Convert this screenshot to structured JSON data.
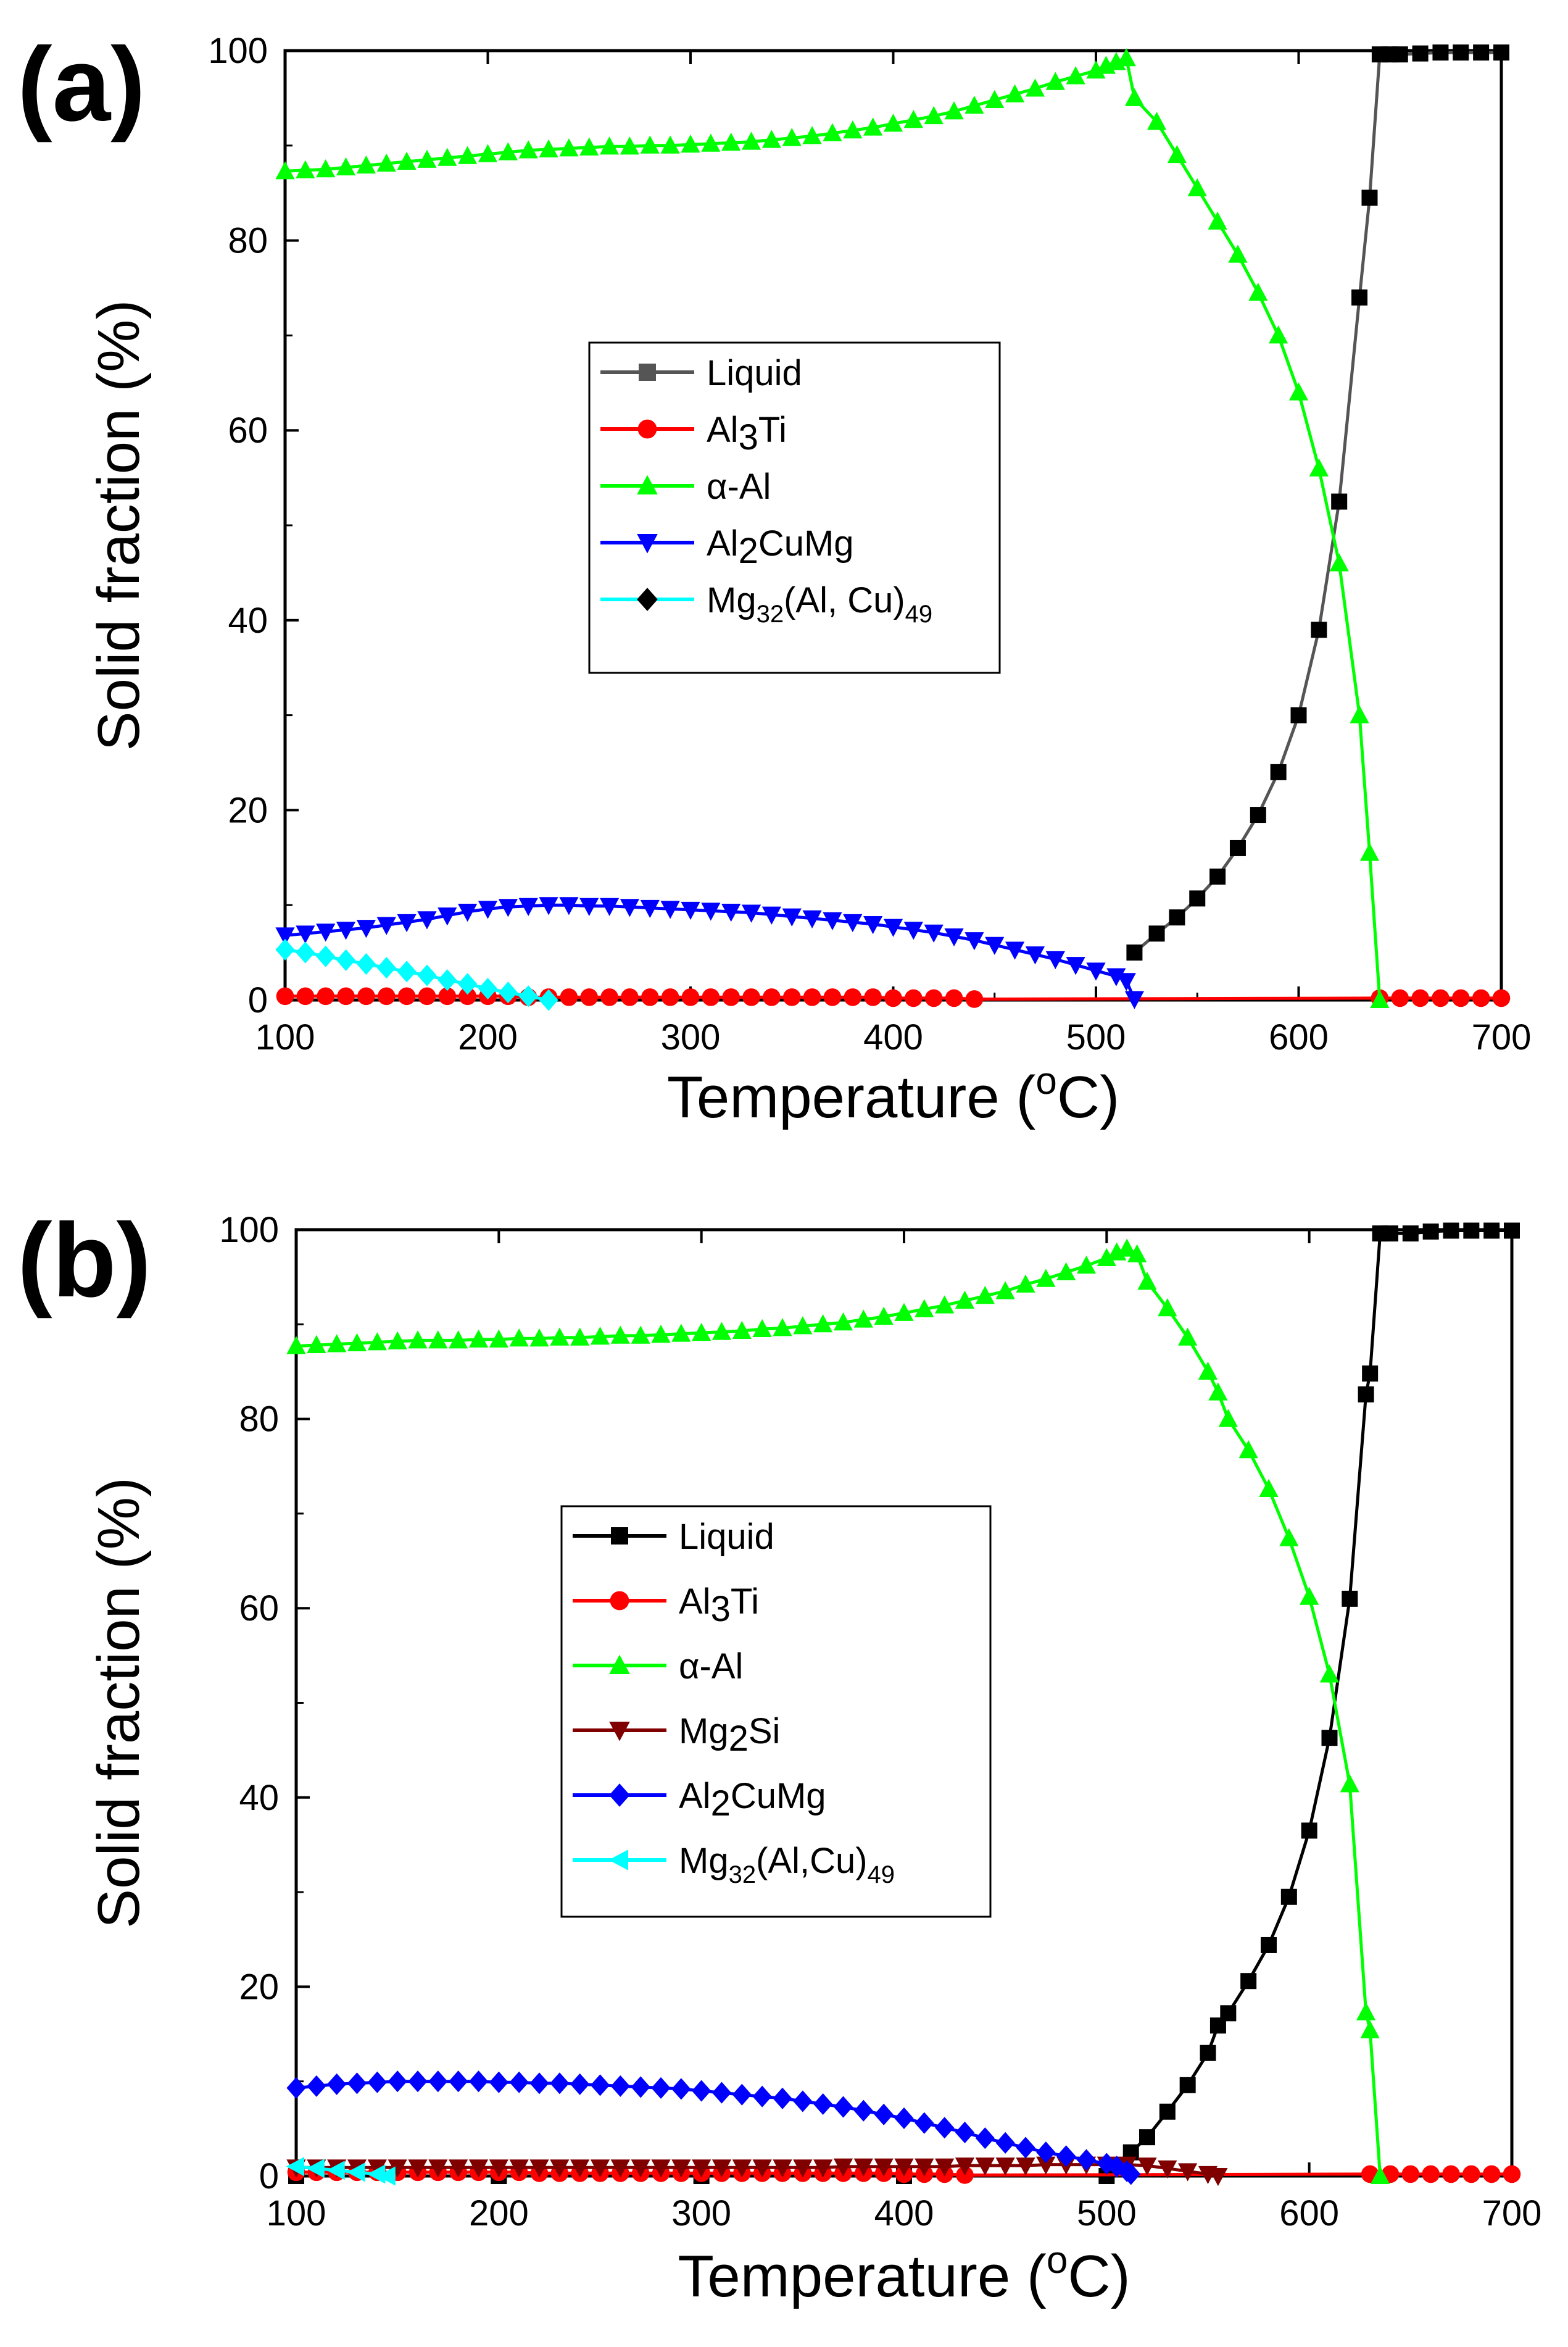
{
  "figure": {
    "colors": {
      "Liquid_a": "#555555",
      "Liquid_b": "#000000",
      "Al3Ti": "#ff0000",
      "alpha_Al": "#00ff00",
      "Al2CuMg_a": "#0000ff",
      "Mg2Si": "#800000",
      "Al2CuMg_b": "#0000ff",
      "Mg32": "#00ffff"
    }
  },
  "chart_data": [
    {
      "panel": "(a)",
      "type": "line",
      "xlabel": "Temperature (oC)",
      "xlabel_parts": {
        "main": "Temperature (",
        "sup": "o",
        "end": "C)"
      },
      "ylabel": "Solid fraction (%)",
      "xlim": [
        100,
        700
      ],
      "ylim": [
        0,
        100
      ],
      "xticks": [
        "100",
        "200",
        "300",
        "400",
        "500",
        "600",
        "700"
      ],
      "yticks": [
        "0",
        "20",
        "40",
        "60",
        "80",
        "100"
      ],
      "legend_position": "center",
      "legend": [
        {
          "text": "Liquid",
          "sub": "",
          "tail": "",
          "sub2": "",
          "marker": "square",
          "color": "#555555"
        },
        {
          "text": "Al",
          "sub": "3",
          "tail": "Ti",
          "sub2": "",
          "marker": "circle",
          "color": "#ff0000"
        },
        {
          "text": "α-Al",
          "sub": "",
          "tail": "",
          "sub2": "",
          "marker": "triangle-up",
          "color": "#00ff00"
        },
        {
          "text": "Al",
          "sub": "2",
          "tail": "CuMg",
          "sub2": "",
          "marker": "triangle-down",
          "color": "#0000ff"
        },
        {
          "text": "Mg",
          "sub": "32",
          "tail": "(Al, Cu)",
          "sub2": "49",
          "marker": "diamond",
          "color": "#00ffff",
          "marker_color": "#000000"
        }
      ],
      "series": [
        {
          "name": "Liquid",
          "color": "#555555",
          "marker": "square",
          "marker_color": "#000000",
          "x": [
            519,
            530,
            540,
            550,
            560,
            570,
            580,
            590,
            600,
            610,
            620,
            630,
            635,
            640,
            645,
            650,
            660,
            670,
            680,
            690,
            700
          ],
          "y": [
            5,
            7,
            8.7,
            10.7,
            13,
            16,
            19.5,
            24,
            30,
            39,
            52.5,
            74,
            84.5,
            99.6,
            99.6,
            99.6,
            99.7,
            99.8,
            99.8,
            99.8,
            99.8
          ]
        },
        {
          "name": "Al3Ti",
          "color": "#ff0000",
          "marker": "circle",
          "marker_color": "#ff0000",
          "x": [
            100,
            110,
            120,
            130,
            140,
            150,
            160,
            170,
            180,
            190,
            200,
            210,
            220,
            230,
            240,
            250,
            260,
            270,
            280,
            290,
            300,
            310,
            320,
            330,
            340,
            350,
            360,
            370,
            380,
            390,
            400,
            410,
            420,
            430,
            440,
            640,
            650,
            660,
            670,
            680,
            690,
            700
          ],
          "y": [
            0.4,
            0.4,
            0.4,
            0.4,
            0.4,
            0.4,
            0.4,
            0.4,
            0.4,
            0.4,
            0.4,
            0.4,
            0.3,
            0.3,
            0.3,
            0.3,
            0.3,
            0.3,
            0.3,
            0.3,
            0.3,
            0.3,
            0.3,
            0.3,
            0.3,
            0.3,
            0.3,
            0.3,
            0.3,
            0.3,
            0.2,
            0.2,
            0.2,
            0.2,
            0.1,
            0.2,
            0.2,
            0.2,
            0.2,
            0.2,
            0.2,
            0.2
          ]
        },
        {
          "name": "α-Al",
          "color": "#00ff00",
          "marker": "triangle-up",
          "marker_color": "#00ff00",
          "x": [
            100,
            110,
            120,
            130,
            140,
            150,
            160,
            170,
            180,
            190,
            200,
            210,
            220,
            230,
            240,
            250,
            260,
            270,
            280,
            290,
            300,
            310,
            320,
            330,
            340,
            350,
            360,
            370,
            380,
            390,
            400,
            410,
            420,
            430,
            440,
            450,
            460,
            470,
            480,
            490,
            500,
            505,
            510,
            515,
            519,
            530,
            540,
            550,
            560,
            570,
            580,
            590,
            600,
            610,
            620,
            630,
            635,
            640
          ],
          "y": [
            87.3,
            87.4,
            87.5,
            87.7,
            87.9,
            88.1,
            88.3,
            88.5,
            88.7,
            88.9,
            89.1,
            89.3,
            89.5,
            89.6,
            89.7,
            89.8,
            89.9,
            89.9,
            90.0,
            90.0,
            90.1,
            90.2,
            90.3,
            90.4,
            90.6,
            90.8,
            91.0,
            91.3,
            91.6,
            91.9,
            92.3,
            92.7,
            93.1,
            93.6,
            94.2,
            94.8,
            95.4,
            96.0,
            96.7,
            97.3,
            97.9,
            98.4,
            98.8,
            99.2,
            95,
            92.5,
            89,
            85.5,
            82,
            78.5,
            74.5,
            70,
            64,
            56,
            46,
            30,
            15.5,
            0
          ]
        },
        {
          "name": "Al2CuMg",
          "color": "#0000ff",
          "marker": "triangle-down",
          "marker_color": "#0000ff",
          "x": [
            100,
            110,
            120,
            130,
            140,
            150,
            160,
            170,
            180,
            190,
            200,
            210,
            220,
            230,
            240,
            250,
            260,
            270,
            280,
            290,
            300,
            310,
            320,
            330,
            340,
            350,
            360,
            370,
            380,
            390,
            400,
            410,
            420,
            430,
            440,
            450,
            460,
            470,
            480,
            490,
            500,
            510,
            515,
            519
          ],
          "y": [
            6.8,
            7.0,
            7.2,
            7.4,
            7.6,
            7.9,
            8.2,
            8.5,
            8.9,
            9.3,
            9.6,
            9.8,
            9.9,
            10.0,
            10.0,
            9.9,
            9.9,
            9.8,
            9.7,
            9.6,
            9.5,
            9.4,
            9.3,
            9.2,
            9.0,
            8.8,
            8.6,
            8.4,
            8.2,
            8.0,
            7.7,
            7.4,
            7.1,
            6.7,
            6.3,
            5.8,
            5.3,
            4.8,
            4.3,
            3.7,
            3.1,
            2.5,
            2.0,
            0.1
          ]
        },
        {
          "name": "Mg32(Al, Cu)49",
          "color": "#00ffff",
          "marker": "diamond",
          "marker_color": "#00ffff",
          "x": [
            100,
            110,
            120,
            130,
            140,
            150,
            160,
            170,
            180,
            190,
            200,
            210,
            220,
            230
          ],
          "y": [
            5.3,
            5.0,
            4.6,
            4.2,
            3.8,
            3.4,
            3.0,
            2.6,
            2.1,
            1.7,
            1.2,
            0.8,
            0.4,
            0.0
          ]
        }
      ]
    },
    {
      "panel": "(b)",
      "type": "line",
      "xlabel": "Temperature (oC)",
      "xlabel_parts": {
        "main": "Temperature (",
        "sup": "o",
        "end": "C)"
      },
      "ylabel": "Solid fraction (%)",
      "xlim": [
        100,
        700
      ],
      "ylim": [
        0,
        100
      ],
      "xticks": [
        "100",
        "200",
        "300",
        "400",
        "500",
        "600",
        "700"
      ],
      "yticks": [
        "0",
        "20",
        "40",
        "60",
        "80",
        "100"
      ],
      "legend_position": "center",
      "legend": [
        {
          "text": "Liquid",
          "sub": "",
          "tail": "",
          "sub2": "",
          "marker": "square",
          "color": "#000000"
        },
        {
          "text": "Al",
          "sub": "3",
          "tail": "Ti",
          "sub2": "",
          "marker": "circle",
          "color": "#ff0000"
        },
        {
          "text": "α-Al",
          "sub": "",
          "tail": "",
          "sub2": "",
          "marker": "triangle-up",
          "color": "#00ff00"
        },
        {
          "text": "Mg",
          "sub": "2",
          "tail": "Si",
          "sub2": "",
          "marker": "triangle-down",
          "color": "#800000"
        },
        {
          "text": "Al",
          "sub": "2",
          "tail": "CuMg",
          "sub2": "",
          "marker": "diamond",
          "color": "#0000ff"
        },
        {
          "text": "Mg",
          "sub": "32",
          "tail": "(Al,Cu)",
          "sub2": "49",
          "marker": "triangle-left",
          "color": "#00ffff"
        }
      ],
      "series": [
        {
          "name": "Liquid",
          "color": "#000000",
          "marker": "square",
          "marker_color": "#000000",
          "x": [
            100,
            200,
            300,
            400,
            500,
            512,
            520,
            530,
            540,
            550,
            555,
            560,
            570,
            580,
            590,
            600,
            610,
            620,
            628,
            630,
            635,
            640,
            650,
            660,
            670,
            680,
            690,
            700
          ],
          "y": [
            0,
            0,
            0,
            0,
            0,
            2.5,
            4.1,
            6.8,
            9.6,
            13,
            15.9,
            17.2,
            20.6,
            24.4,
            29.5,
            36.5,
            46.3,
            61,
            82.6,
            84.8,
            99.6,
            99.6,
            99.6,
            99.8,
            99.9,
            99.9,
            99.9,
            99.9
          ]
        },
        {
          "name": "Al3Ti",
          "color": "#ff0000",
          "marker": "circle",
          "marker_color": "#ff0000",
          "x": [
            100,
            110,
            120,
            130,
            140,
            150,
            160,
            170,
            180,
            190,
            200,
            210,
            220,
            230,
            240,
            250,
            260,
            270,
            280,
            290,
            300,
            310,
            320,
            330,
            340,
            350,
            360,
            370,
            380,
            390,
            400,
            410,
            420,
            430,
            630,
            640,
            650,
            660,
            670,
            680,
            690,
            700
          ],
          "y": [
            0.4,
            0.4,
            0.4,
            0.4,
            0.4,
            0.4,
            0.4,
            0.4,
            0.4,
            0.4,
            0.4,
            0.4,
            0.3,
            0.3,
            0.3,
            0.3,
            0.3,
            0.3,
            0.3,
            0.3,
            0.3,
            0.3,
            0.3,
            0.3,
            0.3,
            0.3,
            0.3,
            0.3,
            0.3,
            0.3,
            0.2,
            0.2,
            0.2,
            0.1,
            0.2,
            0.2,
            0.2,
            0.2,
            0.2,
            0.2,
            0.2,
            0.2
          ]
        },
        {
          "name": "α-Al",
          "color": "#00ff00",
          "marker": "triangle-up",
          "marker_color": "#00ff00",
          "x": [
            100,
            110,
            120,
            130,
            140,
            150,
            160,
            170,
            180,
            190,
            200,
            210,
            220,
            230,
            240,
            250,
            260,
            270,
            280,
            290,
            300,
            310,
            320,
            330,
            340,
            350,
            360,
            370,
            380,
            390,
            400,
            410,
            420,
            430,
            440,
            450,
            460,
            470,
            480,
            490,
            500,
            505,
            510,
            515,
            520,
            530,
            540,
            550,
            555,
            560,
            570,
            580,
            590,
            600,
            610,
            620,
            628,
            630,
            635
          ],
          "y": [
            87.7,
            87.8,
            87.9,
            88.0,
            88.1,
            88.2,
            88.3,
            88.3,
            88.3,
            88.4,
            88.4,
            88.5,
            88.5,
            88.6,
            88.6,
            88.7,
            88.8,
            88.8,
            88.9,
            89.0,
            89.1,
            89.2,
            89.3,
            89.5,
            89.6,
            89.8,
            90.0,
            90.2,
            90.5,
            90.8,
            91.2,
            91.6,
            92.0,
            92.5,
            93.0,
            93.5,
            94.2,
            94.8,
            95.5,
            96.2,
            97.0,
            97.6,
            98.0,
            97.4,
            94.5,
            91.7,
            88.6,
            85.0,
            82.8,
            80.0,
            76.7,
            72.6,
            67.4,
            61.2,
            53.0,
            41.4,
            17.3,
            15.4,
            0
          ]
        },
        {
          "name": "Mg2Si",
          "color": "#800000",
          "marker": "triangle-down",
          "marker_color": "#800000",
          "x": [
            100,
            110,
            120,
            130,
            140,
            150,
            160,
            170,
            180,
            190,
            200,
            210,
            220,
            230,
            240,
            250,
            260,
            270,
            280,
            290,
            300,
            310,
            320,
            330,
            340,
            350,
            360,
            370,
            380,
            390,
            400,
            410,
            420,
            430,
            440,
            450,
            460,
            470,
            480,
            490,
            500,
            510,
            520,
            530,
            540,
            550,
            555
          ],
          "y": [
            0.9,
            0.9,
            0.9,
            0.9,
            0.9,
            0.9,
            0.9,
            0.9,
            0.9,
            0.9,
            0.9,
            0.9,
            0.9,
            0.9,
            0.9,
            0.9,
            0.9,
            0.9,
            0.9,
            0.9,
            0.9,
            0.9,
            0.9,
            0.9,
            0.9,
            0.9,
            0.9,
            1.0,
            1.0,
            1.0,
            1.0,
            1.0,
            1.0,
            1.1,
            1.1,
            1.1,
            1.1,
            1.2,
            1.2,
            1.2,
            1.2,
            1.2,
            1.1,
            0.8,
            0.5,
            0.2,
            0.0
          ]
        },
        {
          "name": "Al2CuMg",
          "color": "#0000ff",
          "marker": "diamond",
          "marker_color": "#0000ff",
          "x": [
            100,
            110,
            120,
            130,
            140,
            150,
            160,
            170,
            180,
            190,
            200,
            210,
            220,
            230,
            240,
            250,
            260,
            270,
            280,
            290,
            300,
            310,
            320,
            330,
            340,
            350,
            360,
            370,
            380,
            390,
            400,
            410,
            420,
            430,
            440,
            450,
            460,
            470,
            480,
            490,
            500,
            505,
            510,
            512
          ],
          "y": [
            9.3,
            9.5,
            9.7,
            9.8,
            9.9,
            10.0,
            10.0,
            10.0,
            10.0,
            10.0,
            9.9,
            9.9,
            9.8,
            9.8,
            9.7,
            9.6,
            9.5,
            9.4,
            9.3,
            9.2,
            9.0,
            8.8,
            8.6,
            8.4,
            8.2,
            7.9,
            7.6,
            7.3,
            6.9,
            6.5,
            6.1,
            5.6,
            5.1,
            4.6,
            4.0,
            3.5,
            3.0,
            2.5,
            2.1,
            1.7,
            1.3,
            1.0,
            0.5,
            0.2
          ]
        },
        {
          "name": "Mg32(Al,Cu)49",
          "color": "#00ffff",
          "marker": "triangle-left",
          "marker_color": "#00ffff",
          "x": [
            100,
            110,
            120,
            130,
            140,
            145
          ],
          "y": [
            1.0,
            0.8,
            0.6,
            0.4,
            0.2,
            0.0
          ]
        }
      ]
    }
  ]
}
